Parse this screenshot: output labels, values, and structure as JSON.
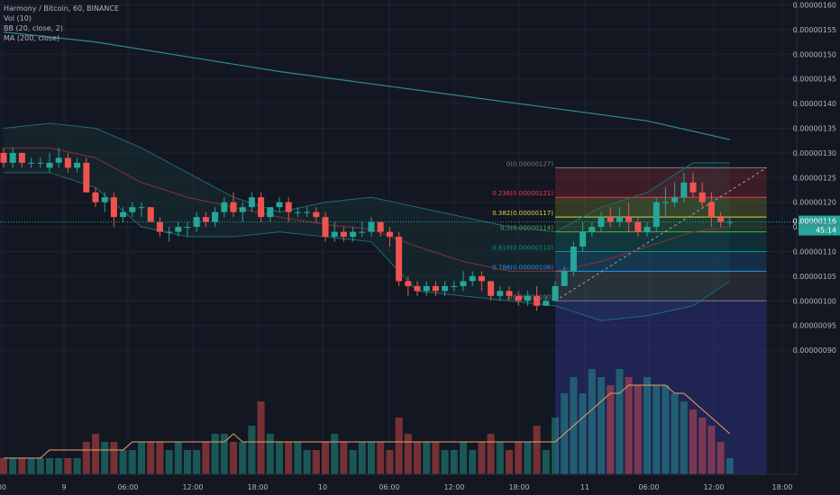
{
  "header": {
    "title": "Harmony / Bitcoin, 60, BINANCE",
    "indicators": [
      "Vol (10)",
      "BB (20, close, 2)",
      "MA (200, close)"
    ]
  },
  "price_axis": {
    "ticks": [
      "0.00000160",
      "0.00000155",
      "0.00000150",
      "0.00000145",
      "0.00000140",
      "0.00000135",
      "0.00000130",
      "0.00000125",
      "0.00000120",
      "0.00000115",
      "0.00000110",
      "0.00000105",
      "0.00000100",
      "0.00000095",
      "0.00000090"
    ],
    "current_price": "0.00000116",
    "countdown": "45:14",
    "hidden_label": "0.00000114"
  },
  "time_axis": {
    "ticks": [
      "00",
      "9",
      "06:00",
      "12:00",
      "18:00",
      "10",
      "06:00",
      "12:00",
      "18:00",
      "11",
      "06:00",
      "12:00",
      "18:00"
    ]
  },
  "fibonacci": [
    {
      "label": "0(0.00000127)",
      "price": 127,
      "color": "#787b86"
    },
    {
      "label": "0.236(0.00000121)",
      "price": 121,
      "color": "#f23645"
    },
    {
      "label": "0.382(0.00000117)",
      "price": 117,
      "color": "#cddc39"
    },
    {
      "label": "0.5(0.00000114)",
      "price": 114,
      "color": "#4caf50"
    },
    {
      "label": "0.618(0.00000110)",
      "price": 110,
      "color": "#009688"
    },
    {
      "label": "0.786(0.00000106)",
      "price": 106,
      "color": "#2196f3"
    },
    {
      "label": "1(0.00000100)",
      "price": 100,
      "color": "#787b86"
    }
  ],
  "colors": {
    "background": "#131722",
    "up": "#26a69a",
    "down": "#ef5350",
    "ma200": "#2b8c8e",
    "bb_band": "#1f6d6b",
    "bb_basis": "#8b2d3a",
    "vol_ma": "#e9a06b",
    "grid": "#1f2330",
    "axis_text": "#b2b5be"
  },
  "chart_data": {
    "type": "candlestick",
    "symbol": "Harmony / Bitcoin",
    "interval": "60",
    "exchange": "BINANCE",
    "unit": "1e-8 BTC",
    "ylim": [
      90,
      161
    ],
    "candles": [
      [
        0,
        130,
        131,
        127,
        128
      ],
      [
        1,
        128,
        131,
        127,
        130
      ],
      [
        2,
        130,
        130,
        127,
        128
      ],
      [
        3,
        128,
        129,
        127,
        128
      ],
      [
        4,
        128,
        129,
        127,
        128
      ],
      [
        5,
        127,
        130,
        126,
        128
      ],
      [
        6,
        128,
        131,
        127,
        129
      ],
      [
        7,
        129,
        130,
        126,
        127
      ],
      [
        8,
        127,
        129,
        126,
        128
      ],
      [
        9,
        128,
        129,
        122,
        122
      ],
      [
        10,
        122,
        123,
        119,
        120
      ],
      [
        11,
        120,
        122,
        118,
        121
      ],
      [
        12,
        121,
        122,
        115,
        117
      ],
      [
        13,
        117,
        119,
        116,
        118
      ],
      [
        14,
        118,
        120,
        117,
        119
      ],
      [
        15,
        119,
        120,
        117,
        119
      ],
      [
        16,
        119,
        119,
        116,
        116
      ],
      [
        17,
        116,
        117,
        113,
        114
      ],
      [
        18,
        114,
        115,
        112,
        114
      ],
      [
        19,
        114,
        116,
        113,
        115
      ],
      [
        20,
        115,
        116,
        113,
        115
      ],
      [
        21,
        115,
        118,
        114,
        117
      ],
      [
        22,
        117,
        118,
        115,
        116
      ],
      [
        23,
        116,
        119,
        115,
        118
      ],
      [
        24,
        118,
        121,
        117,
        120
      ],
      [
        25,
        120,
        122,
        117,
        118
      ],
      [
        26,
        118,
        120,
        116,
        119
      ],
      [
        27,
        119,
        122,
        118,
        121
      ],
      [
        28,
        121,
        122,
        116,
        117
      ],
      [
        29,
        117,
        119,
        116,
        119
      ],
      [
        30,
        119,
        121,
        118,
        120
      ],
      [
        31,
        120,
        121,
        116,
        118
      ],
      [
        32,
        118,
        119,
        117,
        118
      ],
      [
        33,
        118,
        119,
        117,
        118
      ],
      [
        34,
        118,
        119,
        116,
        117
      ],
      [
        35,
        117,
        118,
        112,
        113
      ],
      [
        36,
        113,
        116,
        112,
        114
      ],
      [
        37,
        114,
        115,
        112,
        113
      ],
      [
        38,
        113,
        115,
        112,
        114
      ],
      [
        39,
        114,
        116,
        113,
        114
      ],
      [
        40,
        114,
        117,
        113,
        116
      ],
      [
        41,
        116,
        116,
        113,
        114
      ],
      [
        42,
        114,
        115,
        111,
        113
      ],
      [
        43,
        113,
        114,
        103,
        104
      ],
      [
        44,
        104,
        105,
        101,
        103
      ],
      [
        45,
        103,
        104,
        101,
        102
      ],
      [
        46,
        102,
        104,
        101,
        103
      ],
      [
        47,
        103,
        104,
        101,
        102
      ],
      [
        48,
        102,
        104,
        101,
        103
      ],
      [
        49,
        103,
        104,
        102,
        103
      ],
      [
        50,
        103,
        106,
        102,
        104
      ],
      [
        51,
        104,
        106,
        103,
        105
      ],
      [
        52,
        105,
        106,
        102,
        104
      ],
      [
        53,
        104,
        104,
        100,
        101
      ],
      [
        54,
        101,
        103,
        100,
        102
      ],
      [
        55,
        102,
        103,
        100,
        101
      ],
      [
        56,
        101,
        102,
        99,
        100
      ],
      [
        57,
        100,
        102,
        99,
        101
      ],
      [
        58,
        101,
        103,
        98,
        99
      ],
      [
        59,
        99,
        101,
        99,
        100
      ],
      [
        60,
        100,
        104,
        100,
        103
      ],
      [
        61,
        103,
        107,
        103,
        106
      ],
      [
        62,
        106,
        112,
        105,
        111
      ],
      [
        63,
        111,
        116,
        110,
        114
      ],
      [
        64,
        114,
        116,
        113,
        115
      ],
      [
        65,
        115,
        118,
        114,
        117
      ],
      [
        66,
        117,
        119,
        115,
        116
      ],
      [
        67,
        116,
        119,
        115,
        117
      ],
      [
        68,
        117,
        120,
        114,
        116
      ],
      [
        69,
        116,
        117,
        113,
        114
      ],
      [
        70,
        114,
        116,
        113,
        115
      ],
      [
        71,
        115,
        121,
        114,
        120
      ],
      [
        72,
        120,
        123,
        117,
        120
      ],
      [
        73,
        120,
        124,
        119,
        121
      ],
      [
        74,
        121,
        126,
        120,
        124
      ],
      [
        75,
        124,
        126,
        121,
        122
      ],
      [
        76,
        122,
        124,
        119,
        120
      ],
      [
        77,
        120,
        122,
        115,
        117
      ],
      [
        78,
        117,
        118,
        115,
        116
      ],
      [
        79,
        116,
        117,
        115,
        116
      ]
    ],
    "volume": [
      2,
      2,
      2,
      2,
      2,
      2,
      2,
      2,
      2,
      4,
      5,
      4,
      4,
      3,
      3,
      4,
      4,
      4,
      3,
      4,
      3,
      3,
      4,
      5,
      5,
      4,
      4,
      6,
      9,
      5,
      4,
      4,
      4,
      3,
      3,
      4,
      5,
      4,
      3,
      4,
      4,
      4,
      3,
      7,
      5,
      4,
      4,
      4,
      3,
      3,
      4,
      3,
      4,
      5,
      4,
      3,
      4,
      4,
      6,
      3,
      7,
      10,
      12,
      10,
      13,
      12,
      11,
      13,
      12,
      11,
      12,
      11,
      11,
      10,
      9,
      8,
      7,
      6,
      4,
      2
    ],
    "ma200": [
      [
        0,
        154.5
      ],
      [
        10,
        152.5
      ],
      [
        20,
        149.5
      ],
      [
        30,
        146.5
      ],
      [
        40,
        144
      ],
      [
        50,
        141.5
      ],
      [
        60,
        139
      ],
      [
        70,
        136.5
      ],
      [
        79,
        132.7
      ]
    ],
    "bb_upper": [
      [
        0,
        135
      ],
      [
        5,
        136
      ],
      [
        10,
        135
      ],
      [
        15,
        131
      ],
      [
        20,
        126
      ],
      [
        25,
        121
      ],
      [
        30,
        118
      ],
      [
        35,
        120
      ],
      [
        40,
        121
      ],
      [
        45,
        119
      ],
      [
        50,
        117
      ],
      [
        55,
        115
      ],
      [
        60,
        114
      ],
      [
        65,
        119
      ],
      [
        70,
        122
      ],
      [
        75,
        128
      ],
      [
        79,
        128
      ]
    ],
    "bb_basis": [
      [
        0,
        131
      ],
      [
        5,
        131
      ],
      [
        10,
        129
      ],
      [
        15,
        124
      ],
      [
        20,
        121
      ],
      [
        25,
        119
      ],
      [
        30,
        117
      ],
      [
        35,
        115.5
      ],
      [
        40,
        114.5
      ],
      [
        45,
        111
      ],
      [
        50,
        108
      ],
      [
        55,
        106
      ],
      [
        60,
        106
      ],
      [
        65,
        108
      ],
      [
        70,
        111
      ],
      [
        75,
        114
      ],
      [
        79,
        115
      ]
    ],
    "bb_lower": [
      [
        0,
        126
      ],
      [
        5,
        126
      ],
      [
        10,
        123
      ],
      [
        15,
        115
      ],
      [
        20,
        113
      ],
      [
        25,
        113
      ],
      [
        30,
        114
      ],
      [
        35,
        113
      ],
      [
        40,
        112
      ],
      [
        45,
        102
      ],
      [
        50,
        101
      ],
      [
        55,
        100
      ],
      [
        60,
        99
      ],
      [
        65,
        96
      ],
      [
        70,
        97
      ],
      [
        75,
        99
      ],
      [
        79,
        104
      ]
    ],
    "vol_ma": [
      2,
      2,
      2,
      2,
      2,
      3,
      3,
      3,
      3,
      3,
      3,
      3,
      3,
      3,
      4,
      4,
      4,
      4,
      4,
      4,
      4,
      4,
      4,
      4,
      4,
      5,
      4,
      4,
      4,
      4,
      4,
      4,
      4,
      4,
      4,
      4,
      4,
      4,
      4,
      4,
      4,
      4,
      4,
      4,
      4,
      4,
      4,
      4,
      4,
      4,
      4,
      4,
      4,
      4,
      4,
      4,
      4,
      4,
      4,
      4,
      4,
      5,
      6,
      7,
      8,
      9,
      10,
      10,
      11,
      11,
      11,
      11,
      11,
      10,
      10,
      9,
      8,
      7,
      6,
      5
    ]
  }
}
